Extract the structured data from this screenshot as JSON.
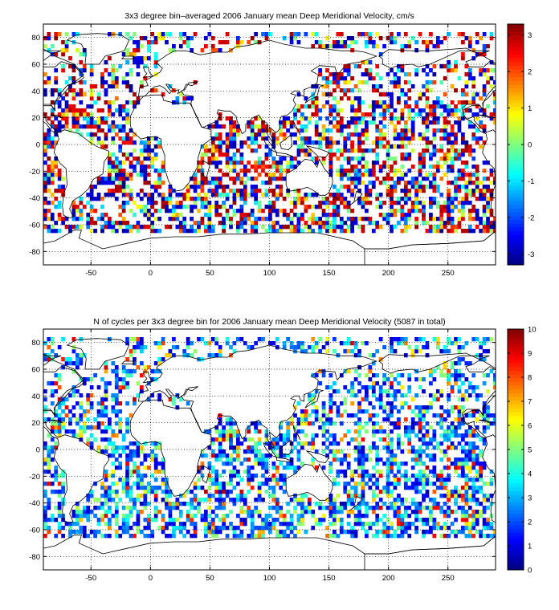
{
  "chart_data": [
    {
      "type": "heatmap",
      "title": "3x3 degree bin–averaged 2006 January mean Deep Meridional Velocity, cm/s",
      "xlabel": "",
      "ylabel": "",
      "xlim": [
        -90,
        290
      ],
      "ylim": [
        -90,
        90
      ],
      "xticks": [
        -50,
        0,
        50,
        100,
        150,
        200,
        250
      ],
      "yticks": [
        -80,
        -60,
        -40,
        -20,
        0,
        20,
        40,
        60,
        80
      ],
      "grid": true,
      "bin_size_deg": 3,
      "colorbar": {
        "min": -3.3,
        "max": 3.3,
        "ticks": [
          -3,
          -2,
          -1,
          0,
          1,
          2,
          3
        ],
        "colormap": "jet",
        "placement": "right"
      }
    },
    {
      "type": "heatmap",
      "title": "N of cycles per 3x3 degree bin for 2006 January mean Deep Meridional Velocity (5087 in total)",
      "xlabel": "",
      "ylabel": "",
      "xlim": [
        -90,
        290
      ],
      "ylim": [
        -90,
        90
      ],
      "xticks": [
        -50,
        0,
        50,
        100,
        150,
        200,
        250
      ],
      "yticks": [
        -80,
        -60,
        -40,
        -20,
        0,
        20,
        40,
        60,
        80
      ],
      "grid": true,
      "bin_size_deg": 3,
      "total_cycles": 5087,
      "colorbar": {
        "min": 0,
        "max": 10,
        "ticks": [
          0,
          1,
          2,
          3,
          4,
          5,
          6,
          7,
          8,
          9,
          10
        ],
        "colormap": "jet",
        "placement": "right"
      }
    }
  ]
}
